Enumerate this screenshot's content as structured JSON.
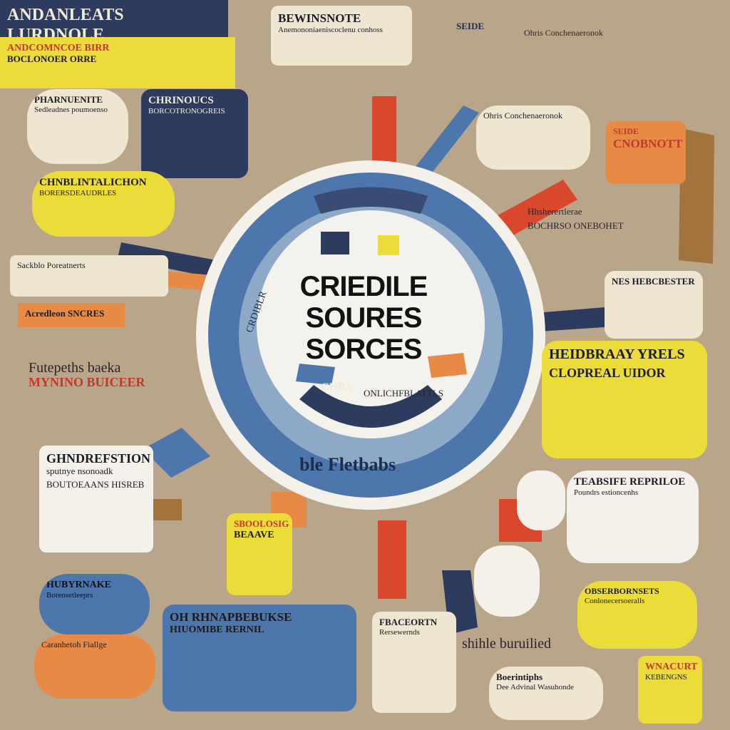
{
  "center": {
    "title_lines": [
      "CRIEDILE",
      "SOURES",
      "SORCES"
    ],
    "ring_label_bottom": "ble Fletbabs",
    "ring_label_left": "CRDIBLR",
    "ring_label_mid": "CHRS",
    "ring_label_mid2": "ONLICHFBLATTLS"
  },
  "banners": {
    "top_left_title": "ANDANLEATS LURDNOLE",
    "top_left_sub": "ANDCOMNCOE BIRR",
    "top_left_sub2": "BOCLONOER ORRE",
    "top_center_title": "BEWINSNOTE",
    "top_center_text": "Anemononiaeniscoclenu conhoss",
    "right_orange": "CNOBNOTT",
    "right_orange_top": "SEIDE",
    "bottom_right_title": "WNACURT",
    "bottom_right_text": "KEBENGNS"
  },
  "left_bubbles": {
    "b1_title": "PHARNUENITE",
    "b1_text": "Sedleadnes poumoenso",
    "b2_title": "CHRINOUCS",
    "b2_text": "BORCOTRONOGREIS",
    "b3_title": "CHNBLINTALICHON",
    "b3_text": "BORERSDEAUDRLES",
    "b4_text": "Sackblo Poreatnerts",
    "b5_text": "Acredleon SNCRES",
    "b6_title": "Futepeths baeka",
    "b6_sub": "MYNINO BUICEER",
    "b7_title": "GHNDREFSTION",
    "b7_text": "sputnye nsonoadk",
    "b8_text": "BOUTOEAANS HISREB",
    "b9_title": "HUBYRNAKE",
    "b9_text": "Borensetleeprs"
  },
  "right_bubbles": {
    "r1_text": "Ohris Conchenaeronok",
    "r2_title": "Hhsherertlerae",
    "r2_text": "BOCHRSO ONEBOHET",
    "r3_title": "NES HEBCBESTER",
    "r4_title": "HEIDBRAAY YRELS",
    "r4_text": "CLOPREAL UIDOR",
    "r5_title": "TEABSIFE REPRILOE",
    "r5_text": "Poundrs estioncenhs",
    "r6_title": "OBSERBORNSETS",
    "r6_text": "Conlonecersoeralls"
  },
  "bottom_bubbles": {
    "c1_title": "SBOOLOSIG",
    "c1_text": "BEAAVE",
    "c2_title": "OH RHNAPBEBUKSE",
    "c2_text": "HIUOMIBE RERNIL",
    "c3_title": "FBACEORTN",
    "c3_text": "Rersewernds",
    "c4_title": "Boerintiphs",
    "c4_text": "Dee Advinal Wasuhonde",
    "c5_text": "shihle buruilied",
    "c6_text": "Caranhetoh Fiallge"
  },
  "colors": {
    "background": "#b9a68a",
    "blue": "#4d76ad",
    "navy": "#2c3b5e",
    "yellow": "#ecdc3a",
    "orange": "#e78a45",
    "red": "#d9472c",
    "cream": "#efe6d2"
  }
}
